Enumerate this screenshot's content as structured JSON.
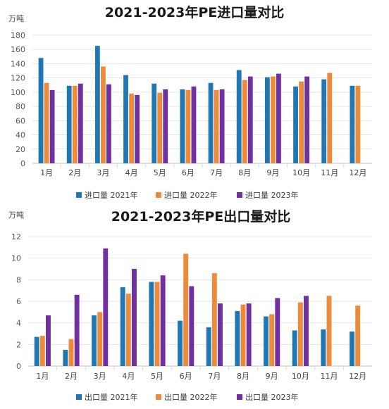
{
  "colors": {
    "y2021": "#1f77b4",
    "y2022": "#ed8b3a",
    "y2023": "#7030a0"
  },
  "chart_data": [
    {
      "type": "bar",
      "title": "2021-2023年PE进口量对比",
      "unit": "万吨",
      "ylim": [
        0,
        180
      ],
      "yticks": [
        0,
        20,
        40,
        60,
        80,
        100,
        120,
        140,
        160,
        180
      ],
      "categories": [
        "1月",
        "2月",
        "3月",
        "4月",
        "5月",
        "6月",
        "7月",
        "8月",
        "9月",
        "10月",
        "11月",
        "12月"
      ],
      "series": [
        {
          "name": "进口量 2021年",
          "values": [
            148,
            109,
            165,
            124,
            112,
            104,
            113,
            131,
            121,
            108,
            118,
            109
          ]
        },
        {
          "name": "进口量 2022年",
          "values": [
            113,
            109,
            136,
            98,
            99,
            103,
            103,
            117,
            122,
            115,
            127,
            109
          ]
        },
        {
          "name": "进口量 2023年",
          "values": [
            103,
            112,
            111,
            96,
            104,
            108,
            104,
            122,
            126,
            122,
            null,
            null
          ]
        }
      ],
      "grid": true,
      "legend": "bottom"
    },
    {
      "type": "bar",
      "title": "2021-2023年PE出口量对比",
      "unit": "万吨",
      "ylim": [
        0,
        12
      ],
      "yticks": [
        0,
        2,
        4,
        6,
        8,
        10,
        12
      ],
      "categories": [
        "1月",
        "2月",
        "3月",
        "4月",
        "5月",
        "6月",
        "7月",
        "8月",
        "9月",
        "10月",
        "11月",
        "12月"
      ],
      "series": [
        {
          "name": "出口量 2021年",
          "values": [
            2.7,
            1.5,
            4.7,
            7.3,
            7.8,
            4.2,
            3.6,
            5.1,
            4.6,
            3.3,
            3.4,
            3.2
          ]
        },
        {
          "name": "出口量 2022年",
          "values": [
            2.8,
            2.5,
            5.0,
            6.7,
            7.8,
            10.4,
            8.6,
            5.7,
            4.8,
            5.9,
            6.5,
            5.6
          ]
        },
        {
          "name": "出口量 2023年",
          "values": [
            4.7,
            6.6,
            10.9,
            9.0,
            8.4,
            7.4,
            5.8,
            5.8,
            6.3,
            6.5,
            null,
            null
          ]
        }
      ],
      "grid": true,
      "legend": "bottom"
    }
  ]
}
